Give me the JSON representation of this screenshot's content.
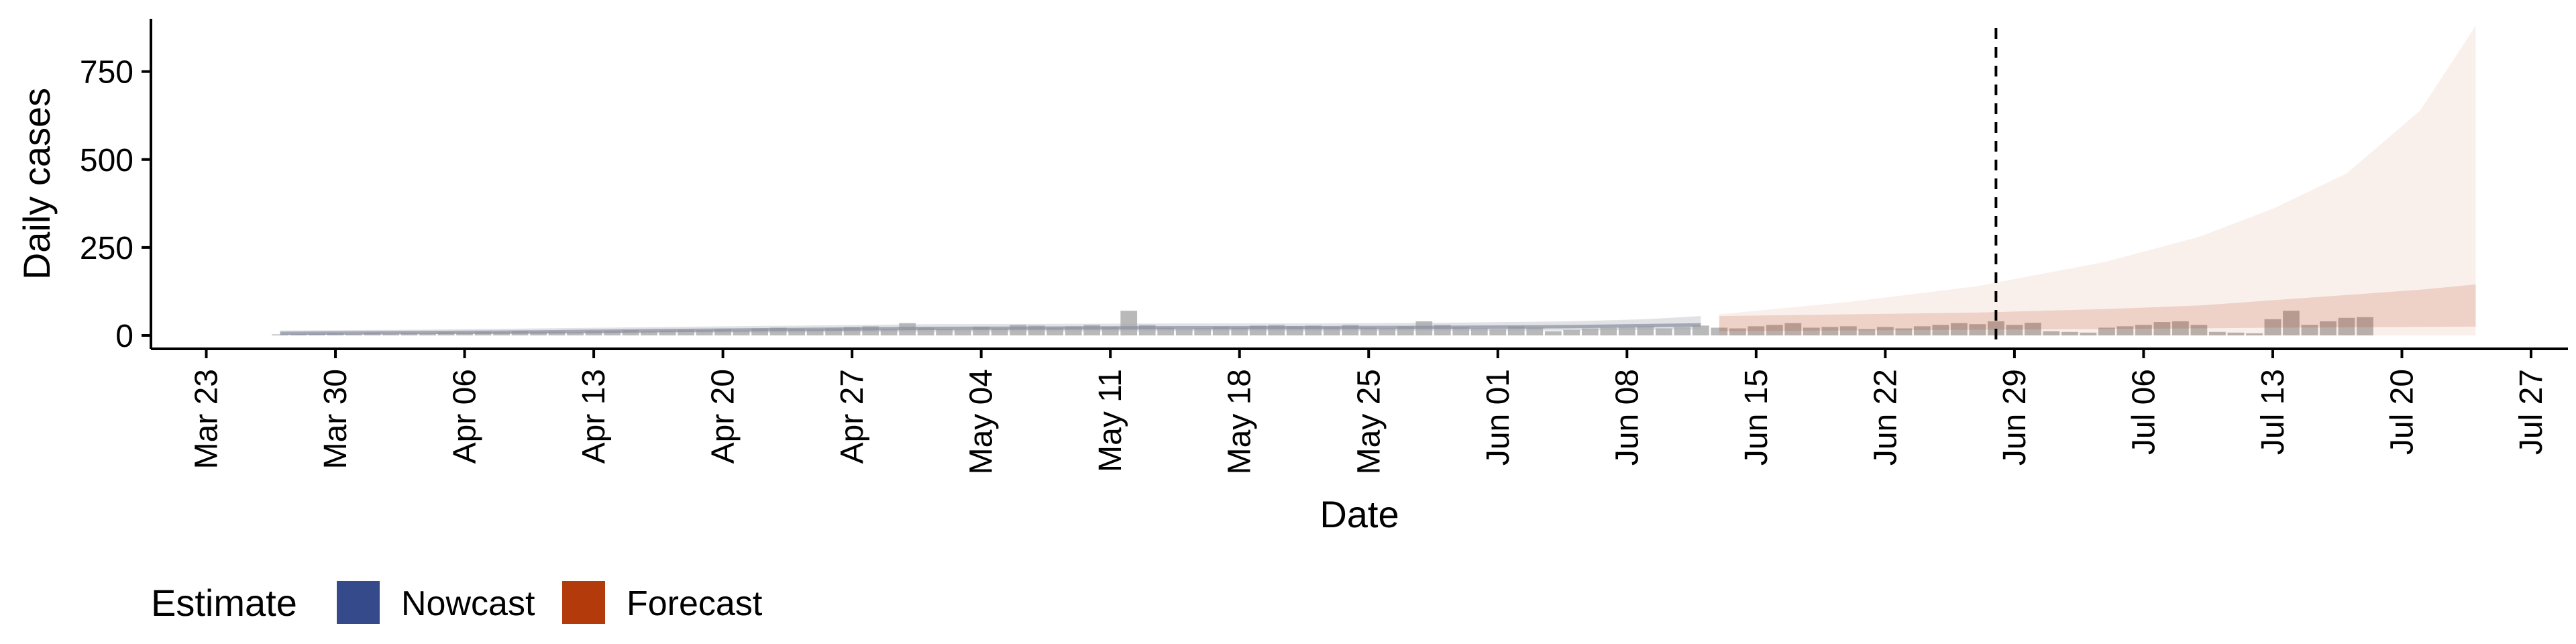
{
  "chart_data": {
    "type": "bar",
    "xlabel": "Date",
    "ylabel": "Daily cases",
    "ylim": [
      0,
      900
    ],
    "y_ticks": [
      0,
      250,
      500,
      750
    ],
    "x_range": [
      "2020-03-20",
      "2020-07-29"
    ],
    "x_ticks": [
      {
        "date": "2020-03-23",
        "label": "Mar 23"
      },
      {
        "date": "2020-03-30",
        "label": "Mar 30"
      },
      {
        "date": "2020-04-06",
        "label": "Apr 06"
      },
      {
        "date": "2020-04-13",
        "label": "Apr 13"
      },
      {
        "date": "2020-04-20",
        "label": "Apr 20"
      },
      {
        "date": "2020-04-27",
        "label": "Apr 27"
      },
      {
        "date": "2020-05-04",
        "label": "May 04"
      },
      {
        "date": "2020-05-11",
        "label": "May 11"
      },
      {
        "date": "2020-05-18",
        "label": "May 18"
      },
      {
        "date": "2020-05-25",
        "label": "May 25"
      },
      {
        "date": "2020-06-01",
        "label": "Jun 01"
      },
      {
        "date": "2020-06-08",
        "label": "Jun 08"
      },
      {
        "date": "2020-06-15",
        "label": "Jun 15"
      },
      {
        "date": "2020-06-22",
        "label": "Jun 22"
      },
      {
        "date": "2020-06-29",
        "label": "Jun 29"
      },
      {
        "date": "2020-07-06",
        "label": "Jul 06"
      },
      {
        "date": "2020-07-13",
        "label": "Jul 13"
      },
      {
        "date": "2020-07-20",
        "label": "Jul 20"
      },
      {
        "date": "2020-07-27",
        "label": "Jul 27"
      }
    ],
    "bars_start": "2020-03-27",
    "bar_values": [
      3,
      4,
      5,
      6,
      4,
      8,
      5,
      7,
      6,
      9,
      8,
      10,
      9,
      12,
      10,
      11,
      9,
      12,
      13,
      15,
      12,
      14,
      16,
      15,
      18,
      14,
      20,
      22,
      19,
      17,
      20,
      24,
      26,
      18,
      35,
      22,
      18,
      16,
      25,
      20,
      30,
      28,
      22,
      26,
      30,
      24,
      70,
      30,
      22,
      18,
      20,
      24,
      22,
      28,
      30,
      26,
      28,
      24,
      30,
      22,
      20,
      26,
      40,
      30,
      24,
      20,
      18,
      26,
      22,
      12,
      16,
      20,
      22,
      24,
      26,
      20,
      24,
      28,
      22,
      20,
      26,
      30,
      35,
      22,
      24,
      26,
      18,
      24,
      20,
      26,
      30,
      35,
      32,
      40,
      30,
      36,
      12,
      10,
      8,
      22,
      26,
      30,
      38,
      40,
      30,
      10,
      8,
      6,
      46,
      70,
      30,
      40,
      50,
      52
    ],
    "series": [
      {
        "name": "Nowcast",
        "color": "#354A8A",
        "x": [
          "2020-03-27",
          "2020-04-03",
          "2020-04-10",
          "2020-04-17",
          "2020-04-24",
          "2020-05-01",
          "2020-05-08",
          "2020-05-15",
          "2020-05-22",
          "2020-05-29",
          "2020-06-05",
          "2020-06-09",
          "2020-06-12"
        ],
        "median": [
          6,
          8,
          10,
          14,
          17,
          20,
          21,
          22,
          22,
          23,
          25,
          28,
          30
        ],
        "lower_90": [
          2,
          3,
          4,
          6,
          8,
          10,
          11,
          12,
          12,
          13,
          14,
          16,
          17
        ],
        "upper_90": [
          14,
          16,
          20,
          24,
          28,
          32,
          33,
          34,
          34,
          36,
          40,
          46,
          55
        ]
      },
      {
        "name": "Forecast",
        "color": "#B33A0A",
        "x": [
          "2020-06-13",
          "2020-06-20",
          "2020-06-27",
          "2020-07-04",
          "2020-07-09",
          "2020-07-13",
          "2020-07-17",
          "2020-07-21",
          "2020-07-24"
        ],
        "lower_50": [
          12,
          14,
          16,
          18,
          20,
          22,
          23,
          24,
          25
        ],
        "upper_50": [
          55,
          60,
          65,
          75,
          85,
          100,
          115,
          130,
          145
        ],
        "lower_90": [
          0,
          0,
          0,
          0,
          0,
          0,
          0,
          0,
          0
        ],
        "upper_90": [
          60,
          95,
          140,
          210,
          280,
          360,
          460,
          640,
          880
        ]
      }
    ],
    "vline_date": "2020-06-28",
    "legend": {
      "title": "Estimate",
      "position": "bottom-left",
      "items": [
        {
          "label": "Nowcast",
          "color": "#354A8A"
        },
        {
          "label": "Forecast",
          "color": "#B33A0A"
        }
      ]
    },
    "grid": false
  }
}
